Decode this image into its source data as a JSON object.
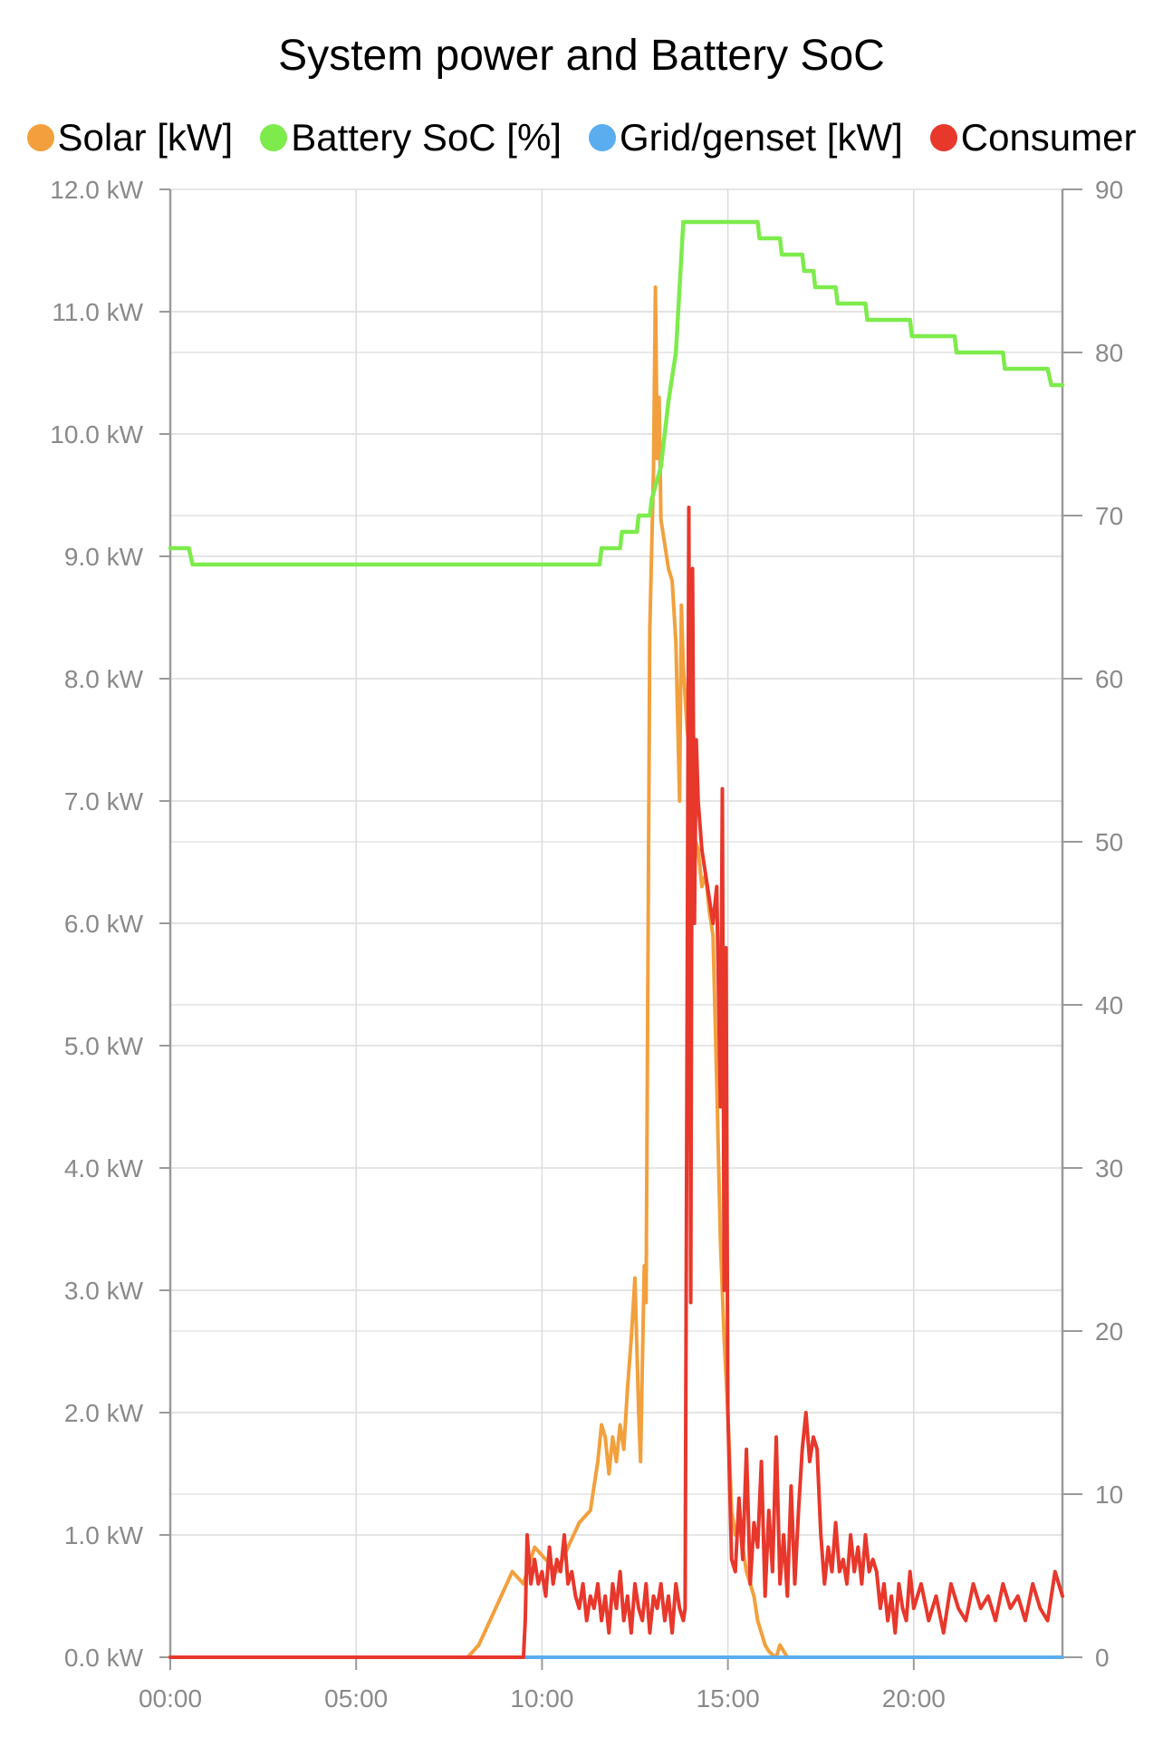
{
  "chart_data": {
    "type": "line",
    "title": "System power and Battery SoC",
    "legend": {
      "position": "top",
      "entries": [
        {
          "label": "Solar [kW]",
          "color": "#F2A03D"
        },
        {
          "label": "Battery SoC [%]",
          "color": "#7DEB4C"
        },
        {
          "label": "Grid/genset [kW]",
          "color": "#5AADEE"
        },
        {
          "label": "Consumer",
          "color": "#E8372B"
        }
      ]
    },
    "x_axis": {
      "unit": "hours",
      "range": [
        0,
        24
      ],
      "ticks": [
        0,
        5,
        10,
        15,
        20
      ],
      "tick_labels": [
        "00:00",
        "05:00",
        "10:00",
        "15:00",
        "20:00"
      ]
    },
    "y_left": {
      "range": [
        0,
        12
      ],
      "ticks": [
        0,
        1,
        2,
        3,
        4,
        5,
        6,
        7,
        8,
        9,
        10,
        11,
        12
      ],
      "tick_labels": [
        "0.0 kW",
        "1.0 kW",
        "2.0 kW",
        "3.0 kW",
        "4.0 kW",
        "5.0 kW",
        "6.0 kW",
        "7.0 kW",
        "8.0 kW",
        "9.0 kW",
        "10.0 kW",
        "11.0 kW",
        "12.0 kW"
      ]
    },
    "y_right": {
      "range": [
        0,
        90
      ],
      "ticks": [
        0,
        10,
        20,
        30,
        40,
        50,
        60,
        70,
        80,
        90
      ],
      "tick_labels": [
        "0",
        "10",
        "20",
        "30",
        "40",
        "50",
        "60",
        "70",
        "80",
        "90"
      ]
    },
    "grid": true,
    "series": [
      {
        "name": "Solar [kW]",
        "axis": "left",
        "color": "#F2A03D",
        "x": [
          0,
          8.0,
          8.3,
          8.6,
          8.9,
          9.2,
          9.5,
          9.8,
          10.1,
          10.4,
          10.7,
          11.0,
          11.3,
          11.5,
          11.6,
          11.7,
          11.8,
          11.9,
          12.0,
          12.1,
          12.2,
          12.3,
          12.4,
          12.5,
          12.6,
          12.65,
          12.7,
          12.75,
          12.8,
          12.9,
          13.0,
          13.05,
          13.1,
          13.15,
          13.2,
          13.3,
          13.4,
          13.5,
          13.6,
          13.7,
          13.75,
          13.8,
          13.9,
          14.0,
          14.1,
          14.2,
          14.3,
          14.4,
          14.5,
          14.6,
          14.7,
          14.8,
          14.9,
          15.0,
          15.1,
          15.2,
          15.3,
          15.4,
          15.5,
          15.6,
          15.7,
          15.8,
          15.9,
          16.0,
          16.1,
          16.2,
          16.3,
          16.4,
          16.5,
          16.6,
          24
        ],
        "y": [
          0,
          0,
          0.1,
          0.3,
          0.5,
          0.7,
          0.6,
          0.9,
          0.8,
          0.7,
          0.9,
          1.1,
          1.2,
          1.6,
          1.9,
          1.8,
          1.5,
          1.8,
          1.6,
          1.9,
          1.7,
          2.2,
          2.6,
          3.1,
          2.0,
          1.6,
          2.4,
          3.2,
          2.9,
          8.4,
          9.7,
          11.2,
          9.8,
          10.3,
          9.3,
          9.1,
          8.9,
          8.8,
          8.3,
          7.0,
          8.6,
          8.1,
          7.6,
          7.3,
          6.7,
          6.6,
          6.3,
          6.4,
          6.1,
          5.9,
          4.7,
          3.4,
          2.6,
          2.0,
          1.2,
          1.0,
          1.1,
          0.9,
          0.7,
          0.6,
          0.5,
          0.3,
          0.2,
          0.1,
          0.05,
          0.02,
          0.0,
          0.1,
          0.05,
          0,
          0
        ]
      },
      {
        "name": "Battery SoC [%]",
        "axis": "right",
        "color": "#7DEB4C",
        "x": [
          0,
          0.5,
          0.6,
          11.55,
          11.6,
          12.1,
          12.15,
          12.55,
          12.6,
          12.9,
          12.95,
          13.2,
          13.4,
          13.6,
          13.8,
          13.9,
          15.8,
          15.85,
          16.4,
          16.45,
          17.0,
          17.05,
          17.3,
          17.35,
          17.9,
          17.95,
          18.7,
          18.75,
          19.9,
          19.95,
          21.1,
          21.15,
          22.4,
          22.45,
          23.6,
          23.7,
          24
        ],
        "y": [
          68,
          68,
          67,
          67,
          68,
          68,
          69,
          69,
          70,
          70,
          71,
          73,
          77,
          80,
          88,
          88,
          88,
          87,
          87,
          86,
          86,
          85,
          85,
          84,
          84,
          83,
          83,
          82,
          82,
          81,
          81,
          80,
          80,
          79,
          79,
          78,
          78
        ]
      },
      {
        "name": "Grid/genset [kW]",
        "axis": "left",
        "color": "#5AADEE",
        "x": [
          0,
          24
        ],
        "y": [
          0,
          0
        ]
      },
      {
        "name": "Consumer",
        "axis": "left",
        "color": "#E8372B",
        "x": [
          0,
          9.5,
          9.55,
          9.6,
          9.7,
          9.8,
          9.9,
          10.0,
          10.1,
          10.2,
          10.3,
          10.4,
          10.5,
          10.6,
          10.7,
          10.8,
          10.9,
          11.0,
          11.1,
          11.2,
          11.3,
          11.4,
          11.5,
          11.6,
          11.7,
          11.8,
          11.9,
          12.0,
          12.1,
          12.2,
          12.3,
          12.4,
          12.5,
          12.6,
          12.7,
          12.8,
          12.9,
          13.0,
          13.1,
          13.2,
          13.3,
          13.4,
          13.5,
          13.6,
          13.7,
          13.8,
          13.85,
          13.9,
          13.95,
          14.0,
          14.05,
          14.1,
          14.15,
          14.2,
          14.3,
          14.4,
          14.5,
          14.6,
          14.7,
          14.8,
          14.85,
          14.9,
          14.95,
          15.0,
          15.1,
          15.2,
          15.3,
          15.4,
          15.5,
          15.6,
          15.7,
          15.8,
          15.9,
          16.0,
          16.1,
          16.2,
          16.3,
          16.4,
          16.5,
          16.6,
          16.7,
          16.8,
          16.9,
          17.0,
          17.1,
          17.2,
          17.3,
          17.4,
          17.5,
          17.6,
          17.7,
          17.8,
          17.9,
          18.0,
          18.1,
          18.2,
          18.3,
          18.4,
          18.5,
          18.6,
          18.7,
          18.8,
          18.9,
          19.0,
          19.1,
          19.2,
          19.3,
          19.4,
          19.5,
          19.6,
          19.7,
          19.8,
          19.9,
          20.0,
          20.2,
          20.4,
          20.6,
          20.8,
          21.0,
          21.2,
          21.4,
          21.6,
          21.8,
          22.0,
          22.2,
          22.4,
          22.6,
          22.8,
          23.0,
          23.2,
          23.4,
          23.6,
          23.8,
          24.0
        ],
        "y": [
          0,
          0,
          0.3,
          1.0,
          0.6,
          0.8,
          0.6,
          0.7,
          0.5,
          0.9,
          0.6,
          0.8,
          0.7,
          1.0,
          0.6,
          0.7,
          0.5,
          0.4,
          0.6,
          0.3,
          0.5,
          0.4,
          0.6,
          0.3,
          0.5,
          0.2,
          0.6,
          0.4,
          0.7,
          0.3,
          0.5,
          0.2,
          0.6,
          0.4,
          0.3,
          0.6,
          0.2,
          0.5,
          0.4,
          0.6,
          0.3,
          0.5,
          0.2,
          0.6,
          0.4,
          0.3,
          0.4,
          5.0,
          9.4,
          2.9,
          8.9,
          6.0,
          7.5,
          7.0,
          6.6,
          6.4,
          6.2,
          6.0,
          6.3,
          4.5,
          7.1,
          3.0,
          5.8,
          2.0,
          0.8,
          0.7,
          1.3,
          0.8,
          1.7,
          0.6,
          1.1,
          0.9,
          1.6,
          0.5,
          1.2,
          0.7,
          1.8,
          0.6,
          1.0,
          0.5,
          1.4,
          0.6,
          1.2,
          1.7,
          2.0,
          1.6,
          1.8,
          1.7,
          1.0,
          0.6,
          0.9,
          0.7,
          1.1,
          0.7,
          0.8,
          0.6,
          1.0,
          0.7,
          0.9,
          0.6,
          1.0,
          0.7,
          0.8,
          0.7,
          0.4,
          0.6,
          0.3,
          0.5,
          0.2,
          0.6,
          0.4,
          0.3,
          0.7,
          0.4,
          0.6,
          0.3,
          0.5,
          0.2,
          0.6,
          0.4,
          0.3,
          0.6,
          0.4,
          0.5,
          0.3,
          0.6,
          0.4,
          0.5,
          0.3,
          0.6,
          0.4,
          0.3,
          0.7,
          0.5
        ]
      }
    ]
  }
}
